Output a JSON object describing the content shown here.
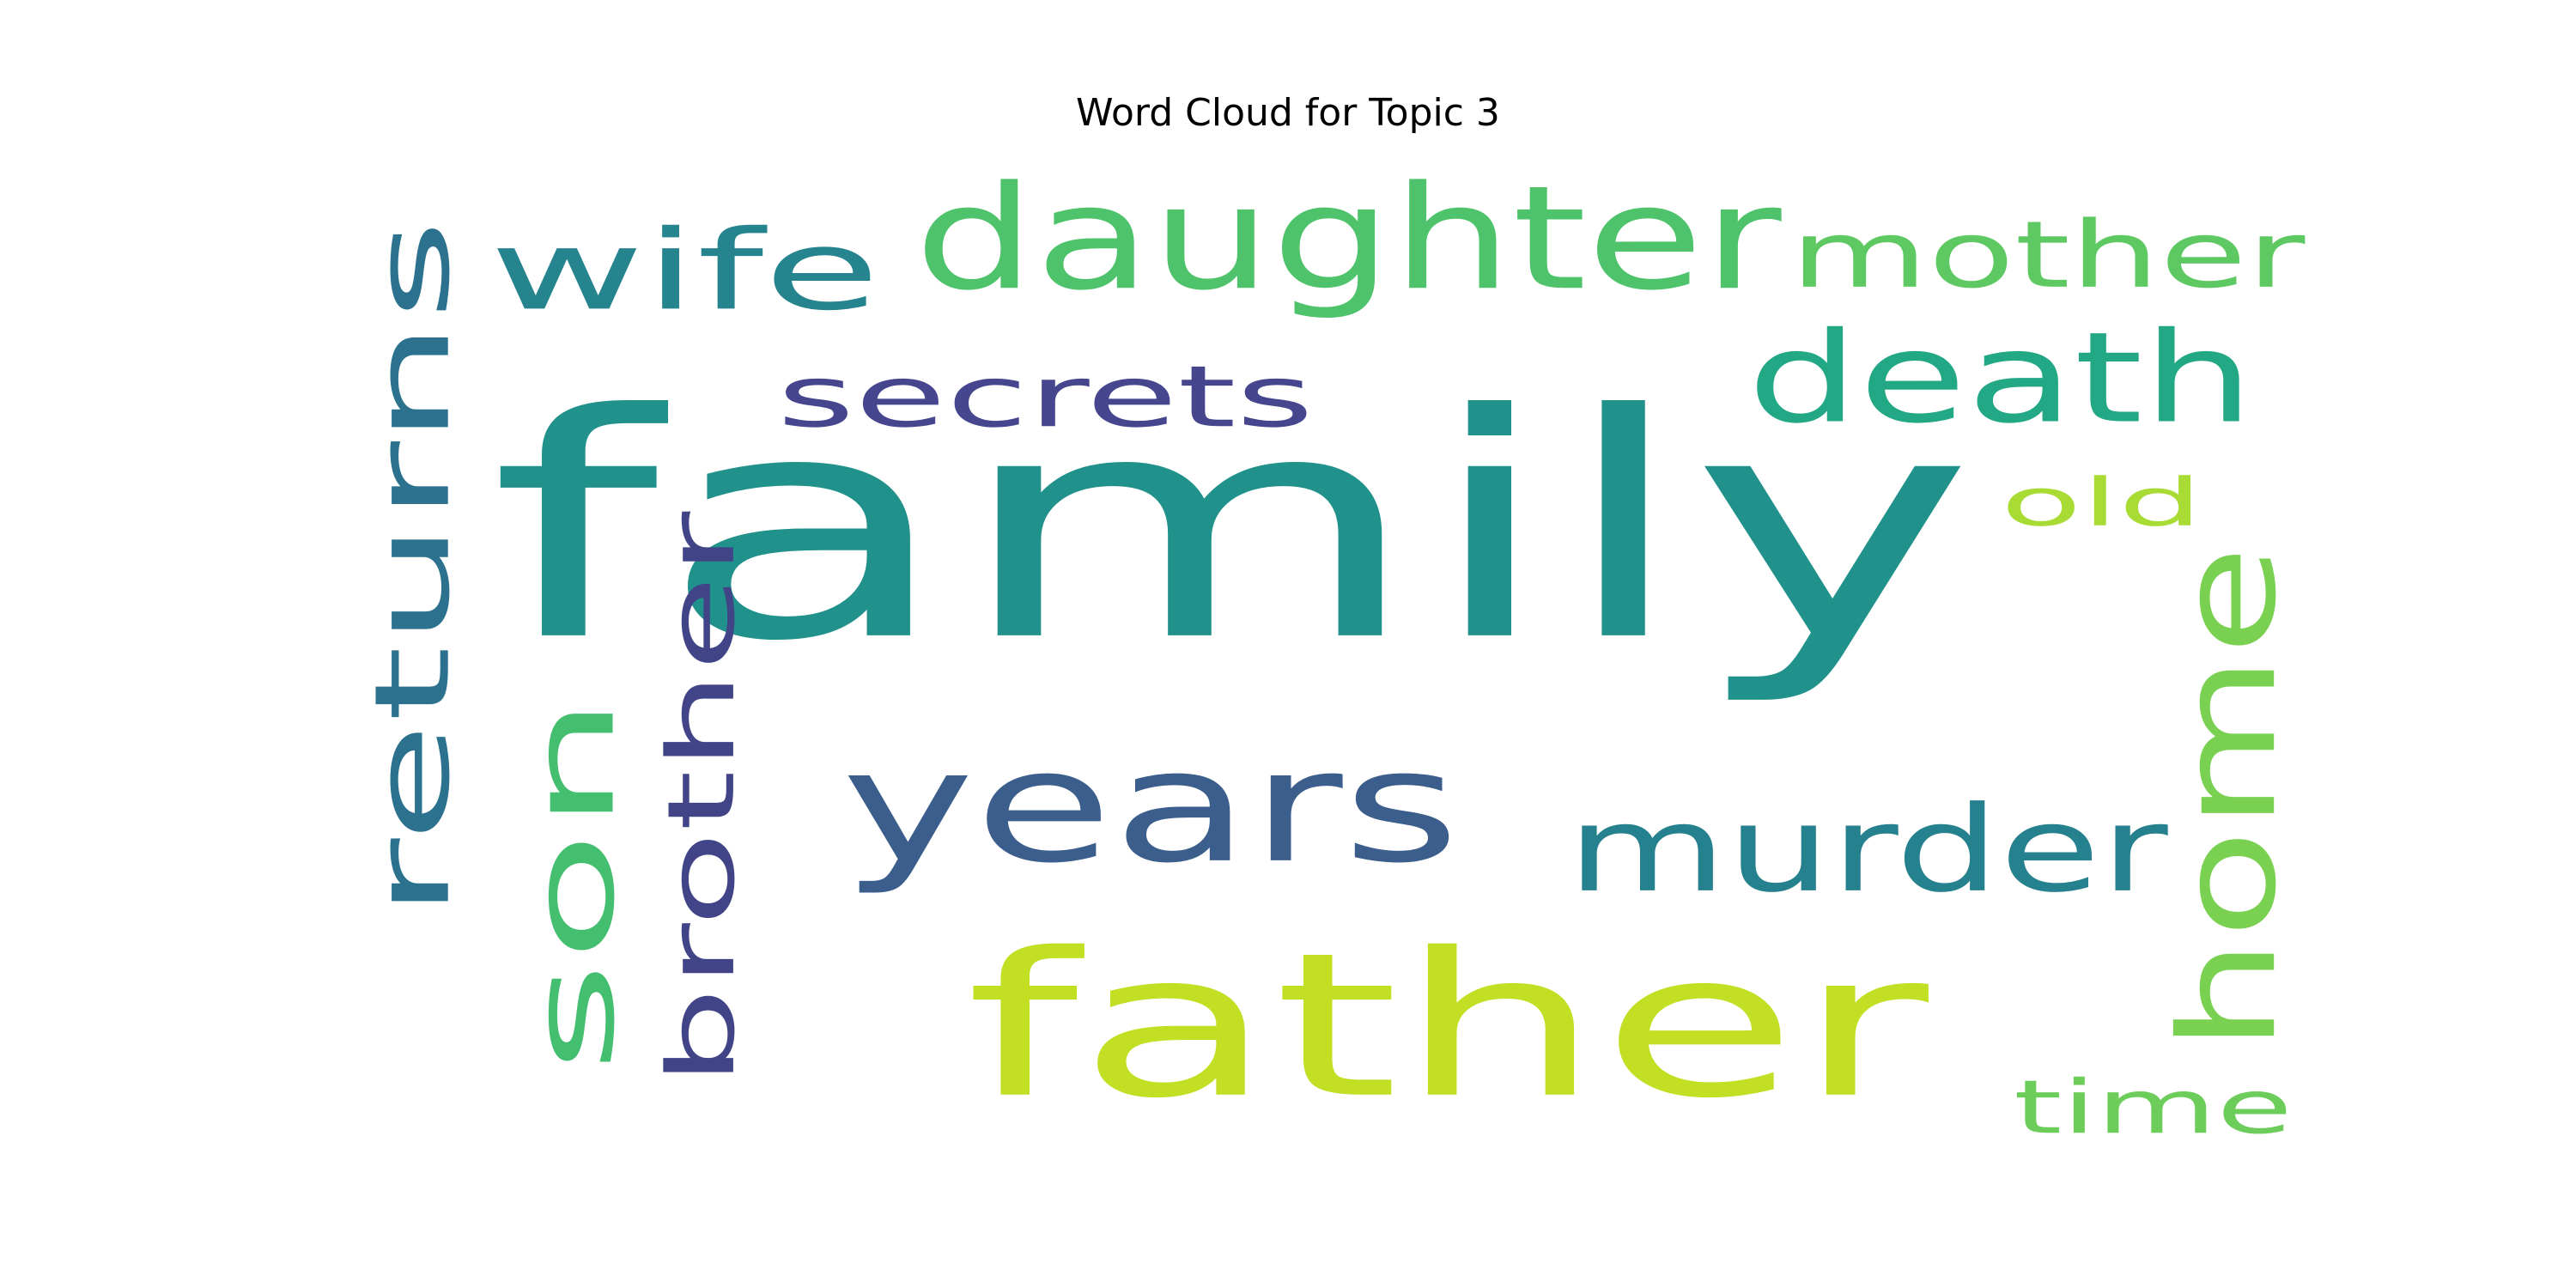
{
  "chart_data": {
    "type": "wordcloud",
    "title": "Word Cloud for Topic 3",
    "words": [
      {
        "text": "family",
        "weight": 1.0,
        "color": "#21918c",
        "orientation": "horizontal"
      },
      {
        "text": "father",
        "weight": 0.55,
        "color": "#c2df23",
        "orientation": "horizontal"
      },
      {
        "text": "years",
        "weight": 0.46,
        "color": "#3b5e8c",
        "orientation": "horizontal"
      },
      {
        "text": "daughter",
        "weight": 0.42,
        "color": "#4ec36b",
        "orientation": "horizontal"
      },
      {
        "text": "home",
        "weight": 0.4,
        "color": "#7ad151",
        "orientation": "vertical"
      },
      {
        "text": "son",
        "weight": 0.38,
        "color": "#44bf70",
        "orientation": "vertical"
      },
      {
        "text": "returns",
        "weight": 0.34,
        "color": "#2c728e",
        "orientation": "vertical"
      },
      {
        "text": "death",
        "weight": 0.34,
        "color": "#22a884",
        "orientation": "horizontal"
      },
      {
        "text": "murder",
        "weight": 0.33,
        "color": "#26818e",
        "orientation": "horizontal"
      },
      {
        "text": "wife",
        "weight": 0.3,
        "color": "#25848e",
        "orientation": "horizontal"
      },
      {
        "text": "mother",
        "weight": 0.28,
        "color": "#5ec962",
        "orientation": "horizontal"
      },
      {
        "text": "brother",
        "weight": 0.27,
        "color": "#414487",
        "orientation": "vertical"
      },
      {
        "text": "secrets",
        "weight": 0.24,
        "color": "#46468f",
        "orientation": "horizontal"
      },
      {
        "text": "time",
        "weight": 0.21,
        "color": "#6ccd5a",
        "orientation": "horizontal"
      },
      {
        "text": "old",
        "weight": 0.19,
        "color": "#a8db34",
        "orientation": "horizontal"
      }
    ]
  }
}
